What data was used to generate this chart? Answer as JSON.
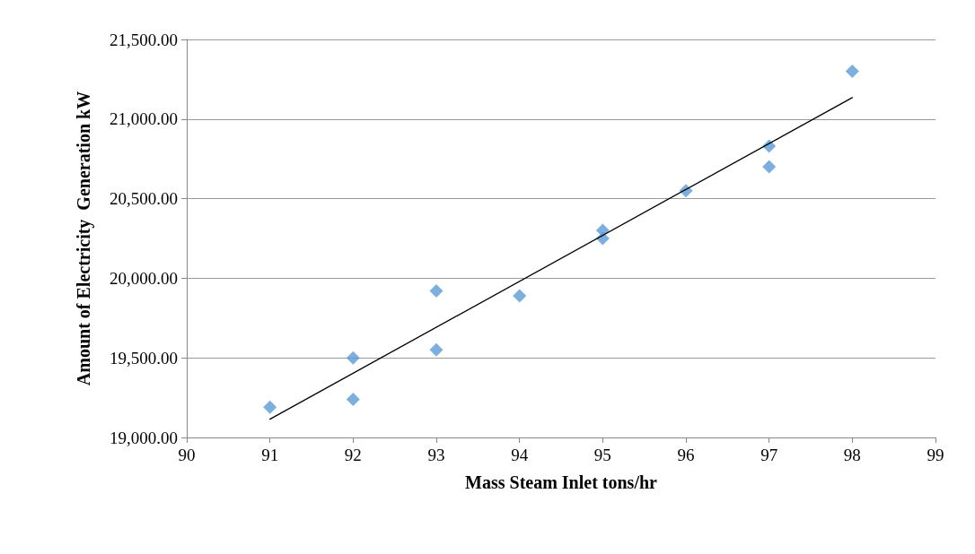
{
  "chart_data": {
    "type": "scatter",
    "xlabel": "Mass Steam Inlet tons/hr",
    "ylabel": "Amount of Electricity  Generation kW",
    "xlim": [
      90,
      99
    ],
    "xticks": [
      90,
      91,
      92,
      93,
      94,
      95,
      96,
      97,
      98,
      99
    ],
    "ylim": [
      19000,
      21500
    ],
    "yticks": [
      {
        "value": 19000,
        "label": "19,000.00"
      },
      {
        "value": 19500,
        "label": "19,500.00"
      },
      {
        "value": 20000,
        "label": "20,000.00"
      },
      {
        "value": 20500,
        "label": "20,500.00"
      },
      {
        "value": 21000,
        "label": "21,000.00"
      },
      {
        "value": 21500,
        "label": "21,500.00"
      }
    ],
    "grid": "y",
    "marker": "diamond",
    "series": [
      {
        "color": "#5b9bd5",
        "x": [
          91,
          92,
          92,
          93,
          93,
          94,
          95,
          95,
          96,
          97,
          97,
          98
        ],
        "values": [
          19190,
          19500,
          19240,
          19920,
          19550,
          19890,
          20300,
          20250,
          20550,
          20830,
          20700,
          21300
        ]
      },
      {
        "type": "line",
        "color": "#000000",
        "marker": "none",
        "line_style": "solid",
        "x": [
          91,
          98
        ],
        "values": [
          19115,
          21135
        ]
      }
    ]
  }
}
